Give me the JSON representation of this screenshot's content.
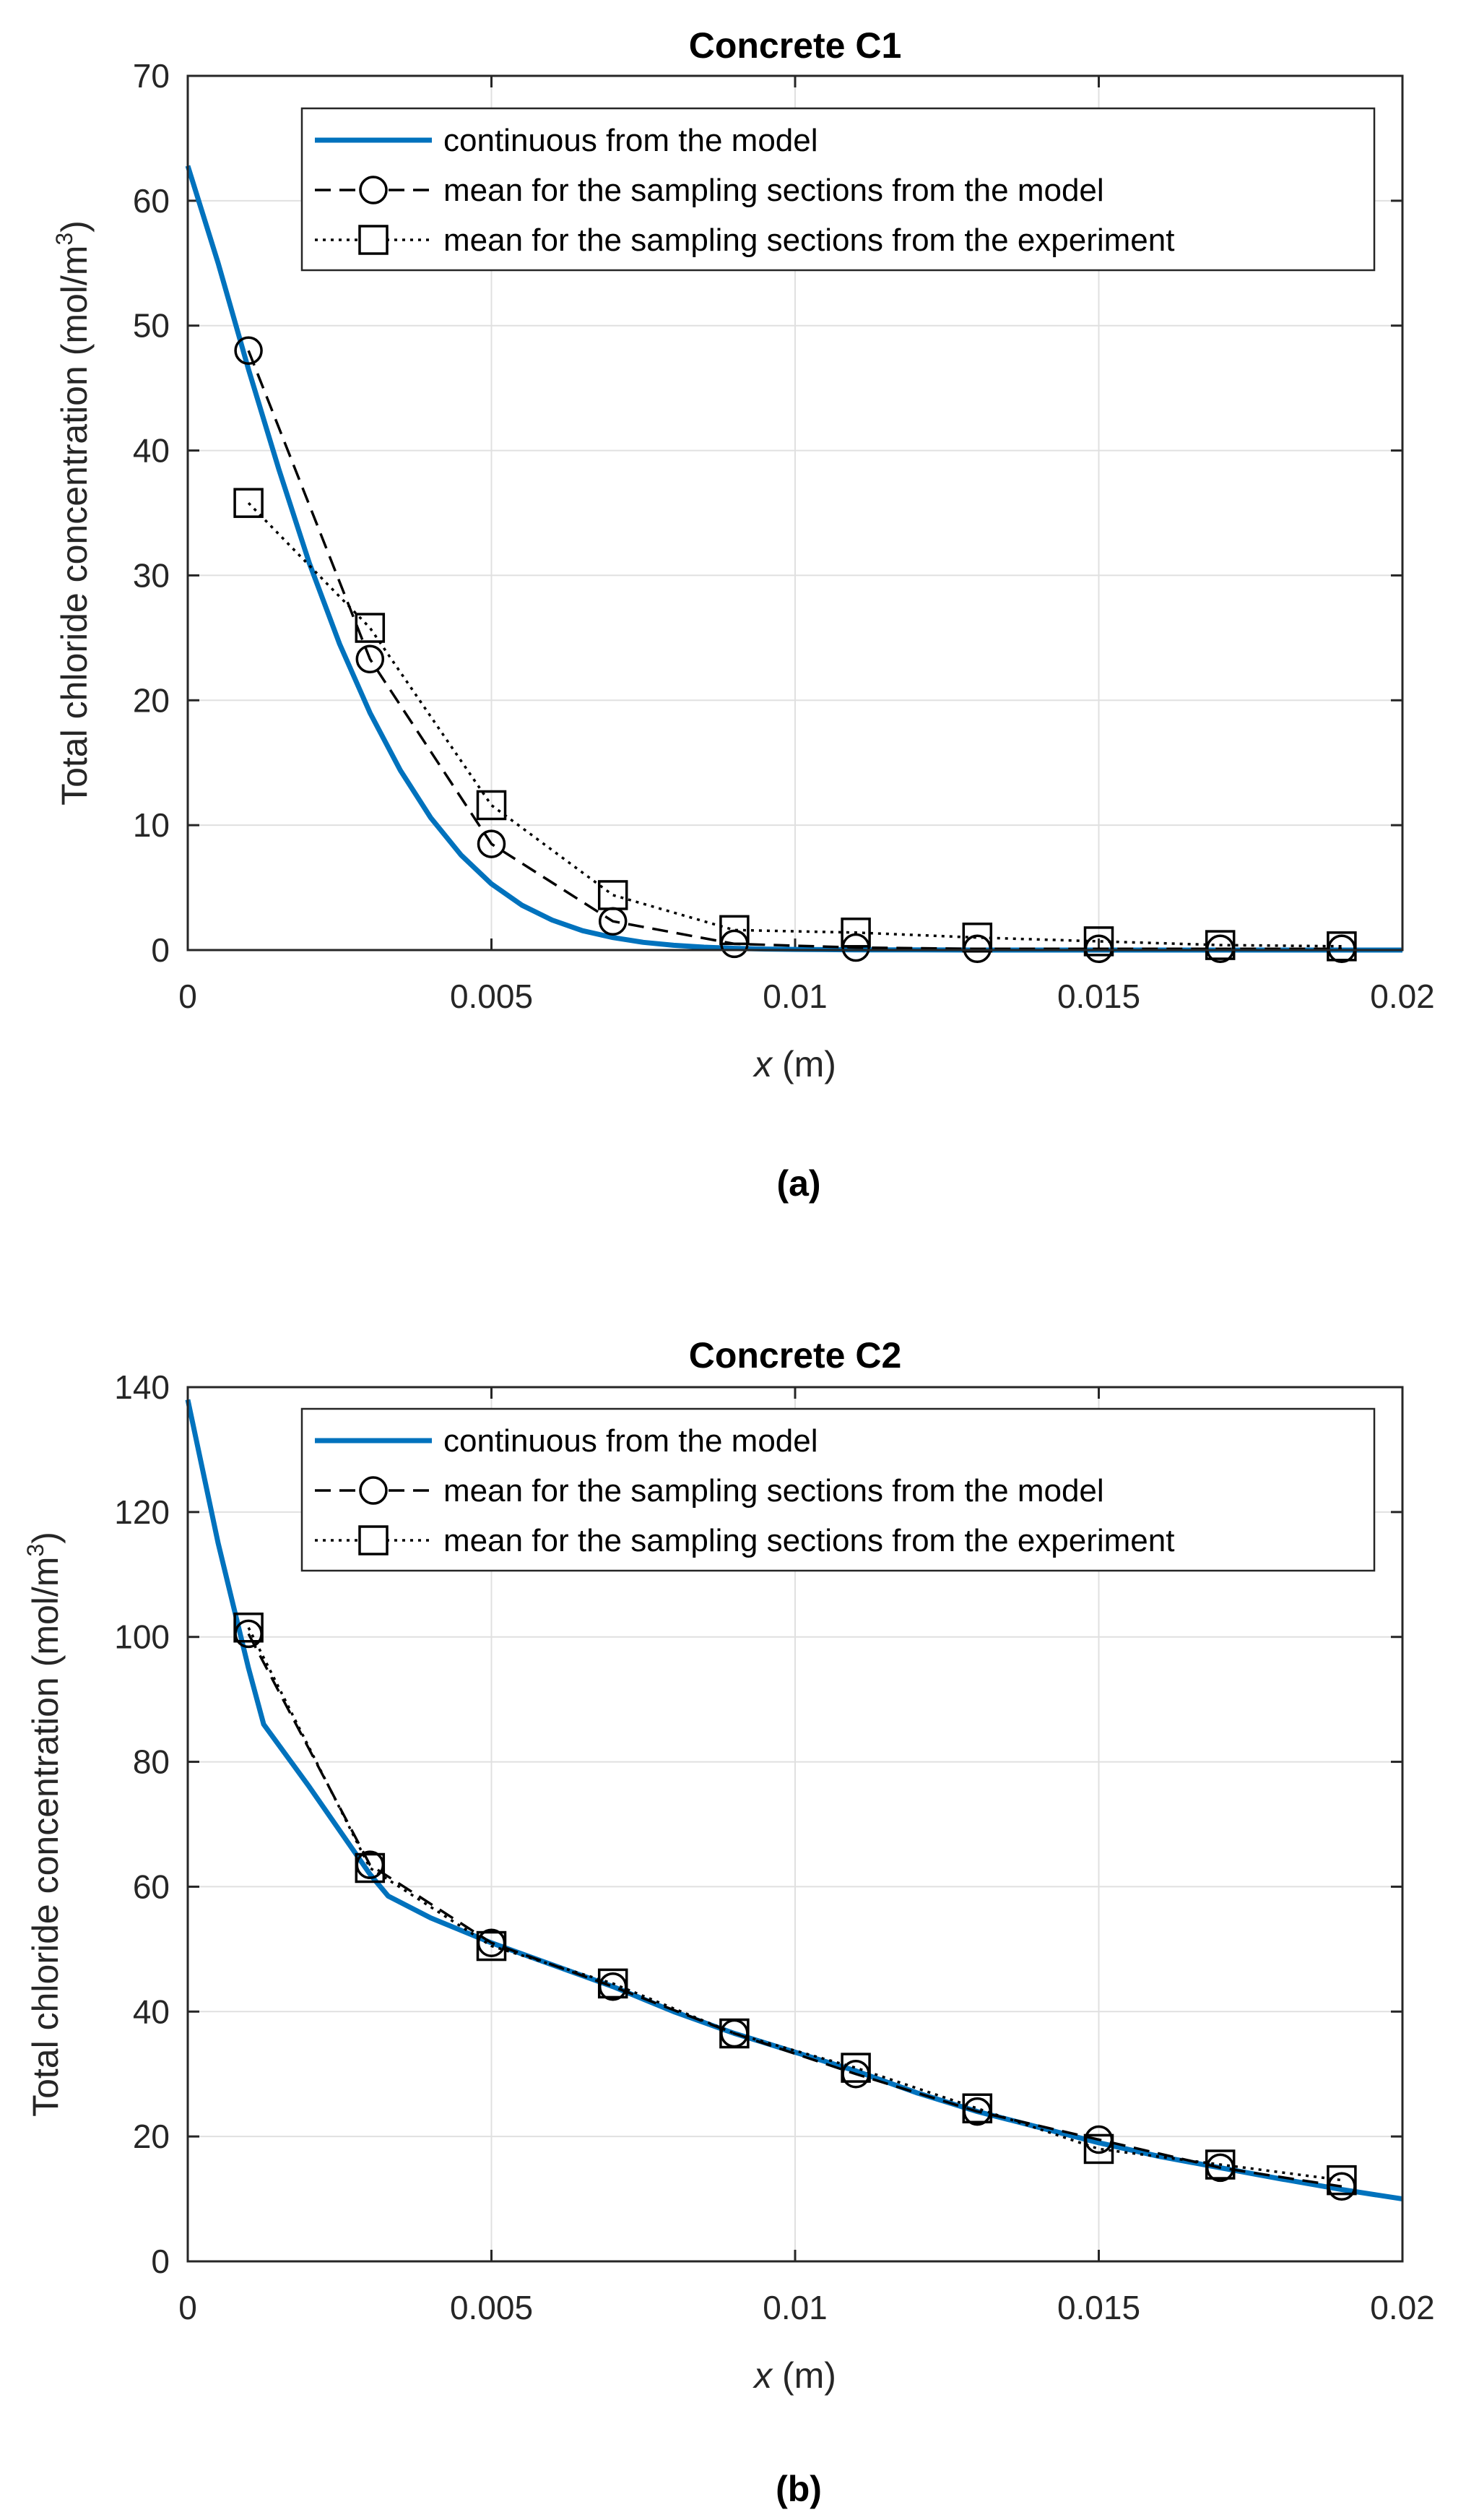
{
  "chart_data": [
    {
      "type": "line",
      "title": "Concrete C1",
      "panel_label": "(a)",
      "xlabel_var": "x",
      "xlabel_unit": " (m)",
      "ylabel": "Total chloride concentration (mol/m",
      "ylabel_sup": "3",
      "ylabel_end": ")",
      "xlim": [
        0,
        0.02
      ],
      "ylim": [
        0,
        70
      ],
      "xticks": [
        0,
        0.005,
        0.01,
        0.015,
        0.02
      ],
      "xtick_labels": [
        "0",
        "0.005",
        "0.01",
        "0.015",
        "0.02"
      ],
      "yticks": [
        0,
        10,
        20,
        30,
        40,
        50,
        60,
        70
      ],
      "ytick_labels": [
        "0",
        "10",
        "20",
        "30",
        "40",
        "50",
        "60",
        "70"
      ],
      "grid": true,
      "legend_position": "top-right",
      "series": [
        {
          "name": "continuous from the model",
          "style": "solid",
          "color": "#0072BD",
          "marker": "none",
          "x": [
            0,
            0.0005,
            0.001,
            0.0015,
            0.002,
            0.0025,
            0.003,
            0.0035,
            0.004,
            0.0045,
            0.005,
            0.0055,
            0.006,
            0.0065,
            0.007,
            0.0075,
            0.008,
            0.0085,
            0.009,
            0.0095,
            0.01,
            0.011,
            0.012,
            0.013,
            0.014,
            0.015,
            0.016,
            0.017,
            0.018,
            0.019,
            0.02
          ],
          "y": [
            62.8,
            55.0,
            46.5,
            38.5,
            31.0,
            24.5,
            19.0,
            14.4,
            10.6,
            7.6,
            5.3,
            3.6,
            2.4,
            1.55,
            1.0,
            0.62,
            0.38,
            0.23,
            0.14,
            0.08,
            0.05,
            0.02,
            0.01,
            0.0,
            0.0,
            0.0,
            0.0,
            0.0,
            0.0,
            0.0,
            0.0
          ]
        },
        {
          "name": "mean for the sampling sections from the model",
          "style": "dashed",
          "color": "#000000",
          "marker": "circle",
          "x": [
            0.001,
            0.003,
            0.005,
            0.007,
            0.009,
            0.011,
            0.013,
            0.015,
            0.017,
            0.019
          ],
          "y": [
            48.0,
            23.3,
            8.5,
            2.3,
            0.5,
            0.2,
            0.1,
            0.1,
            0.1,
            0.1
          ]
        },
        {
          "name": "mean for the sampling sections from the experiment",
          "style": "dotted",
          "color": "#000000",
          "marker": "square",
          "x": [
            0.001,
            0.003,
            0.005,
            0.007,
            0.009,
            0.011,
            0.013,
            0.015,
            0.017,
            0.019
          ],
          "y": [
            35.8,
            25.8,
            11.6,
            4.4,
            1.6,
            1.4,
            1.0,
            0.7,
            0.4,
            0.3
          ]
        }
      ]
    },
    {
      "type": "line",
      "title": "Concrete C2",
      "panel_label": "(b)",
      "xlabel_var": "x",
      "xlabel_unit": " (m)",
      "ylabel": "Total chloride concentration (mol/m",
      "ylabel_sup": "3",
      "ylabel_end": ")",
      "xlim": [
        0,
        0.02
      ],
      "ylim": [
        0,
        140
      ],
      "xticks": [
        0,
        0.005,
        0.01,
        0.015,
        0.02
      ],
      "xtick_labels": [
        "0",
        "0.005",
        "0.01",
        "0.015",
        "0.02"
      ],
      "yticks": [
        0,
        20,
        40,
        60,
        80,
        100,
        120,
        140
      ],
      "ytick_labels": [
        "0",
        "20",
        "40",
        "60",
        "80",
        "100",
        "120",
        "140"
      ],
      "grid": true,
      "legend_position": "top-right",
      "series": [
        {
          "name": "continuous from the model",
          "style": "solid",
          "color": "#0072BD",
          "marker": "none",
          "x": [
            0,
            0.0005,
            0.001,
            0.00125,
            0.002,
            0.003,
            0.0033,
            0.004,
            0.005,
            0.006,
            0.007,
            0.008,
            0.009,
            0.01,
            0.011,
            0.012,
            0.013,
            0.014,
            0.015,
            0.016,
            0.017,
            0.018,
            0.019,
            0.02
          ],
          "y": [
            138,
            115,
            95,
            86,
            76,
            62,
            58.5,
            55,
            51,
            47.5,
            44,
            40,
            36.5,
            33.5,
            30.5,
            27,
            24,
            21.5,
            19,
            16.8,
            15,
            13.2,
            11.5,
            10
          ]
        },
        {
          "name": "mean for the sampling sections from the model",
          "style": "dashed",
          "color": "#000000",
          "marker": "circle",
          "x": [
            0.001,
            0.003,
            0.005,
            0.007,
            0.009,
            0.011,
            0.013,
            0.015,
            0.017,
            0.019
          ],
          "y": [
            100.5,
            63.5,
            51.0,
            44.0,
            36.5,
            30.0,
            24.0,
            19.5,
            15.0,
            12.0
          ]
        },
        {
          "name": "mean for the sampling sections from the experiment",
          "style": "dotted",
          "color": "#000000",
          "marker": "square",
          "x": [
            0.001,
            0.003,
            0.005,
            0.007,
            0.009,
            0.011,
            0.013,
            0.015,
            0.017,
            0.019
          ],
          "y": [
            101.5,
            63.0,
            50.5,
            44.5,
            36.5,
            31.0,
            24.5,
            18.0,
            15.5,
            13.0
          ]
        }
      ]
    }
  ]
}
